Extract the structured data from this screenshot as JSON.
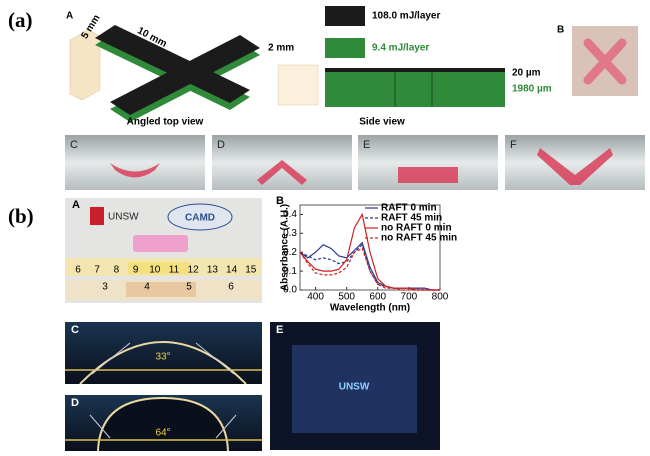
{
  "panel_a": {
    "label": "(a)",
    "A": {
      "label": "A",
      "dims": [
        "5 mm",
        "10 mm",
        "2 mm"
      ],
      "caption": "Angled top view"
    },
    "side": {
      "legend": [
        "108.0 mJ/layer",
        "9.4 mJ/layer"
      ],
      "thickness": [
        "20 µm",
        "1980 µm"
      ],
      "caption": "Side view"
    },
    "B": {
      "label": "B"
    },
    "photos": [
      "C",
      "D",
      "E",
      "F"
    ]
  },
  "panel_b": {
    "label": "(b)",
    "A": {
      "label": "A",
      "logos": [
        "UNSW",
        "CAMD"
      ],
      "ruler_top": [
        6,
        7,
        8,
        9,
        10,
        11,
        12,
        13,
        14,
        15
      ],
      "ruler_bottom": [
        3,
        4,
        5,
        6
      ]
    },
    "C": {
      "label": "C",
      "angle": "33°"
    },
    "D": {
      "label": "D",
      "angle": "64°"
    },
    "E": {
      "label": "E",
      "text": "UNSW"
    }
  },
  "chart_data": {
    "type": "line",
    "label": "B",
    "xlabel": "Wavelength (nm)",
    "ylabel": "Absorbance (A.U.)",
    "x": [
      350,
      375,
      400,
      425,
      450,
      475,
      500,
      525,
      550,
      575,
      600,
      625,
      650,
      675,
      700,
      725,
      750,
      775,
      800
    ],
    "xlim": [
      350,
      800
    ],
    "xticks": [
      400,
      500,
      600,
      700,
      800
    ],
    "ylim": [
      0,
      0.45
    ],
    "yticks": [
      {
        "value": 0,
        "label": "0.0"
      },
      0.1,
      0.2,
      0.3,
      0.4
    ],
    "series": [
      {
        "name": "RAFT 0 min",
        "color": "#2b3a8c",
        "dash": false,
        "values": [
          0.2,
          0.17,
          0.2,
          0.24,
          0.22,
          0.18,
          0.17,
          0.21,
          0.25,
          0.12,
          0.04,
          0.02,
          0.01,
          0.01,
          0.01,
          0.01,
          0.01,
          0,
          0
        ]
      },
      {
        "name": "RAFT 45 min",
        "color": "#2b3a8c",
        "dash": true,
        "values": [
          0.2,
          0.18,
          0.16,
          0.17,
          0.16,
          0.14,
          0.15,
          0.2,
          0.24,
          0.1,
          0.03,
          0.02,
          0.01,
          0.01,
          0.01,
          0.01,
          0,
          0,
          0
        ]
      },
      {
        "name": "no RAFT 0 min",
        "color": "#d02020",
        "dash": false,
        "values": [
          0.2,
          0.15,
          0.11,
          0.1,
          0.1,
          0.11,
          0.16,
          0.33,
          0.4,
          0.2,
          0.06,
          0.02,
          0.01,
          0.01,
          0.01,
          0,
          0,
          0,
          0
        ]
      },
      {
        "name": "no RAFT 45 min",
        "color": "#d02020",
        "dash": true,
        "values": [
          0.2,
          0.14,
          0.09,
          0.08,
          0.08,
          0.09,
          0.12,
          0.2,
          0.22,
          0.1,
          0.03,
          0.01,
          0.01,
          0,
          0,
          0,
          0,
          0,
          0
        ]
      }
    ]
  }
}
